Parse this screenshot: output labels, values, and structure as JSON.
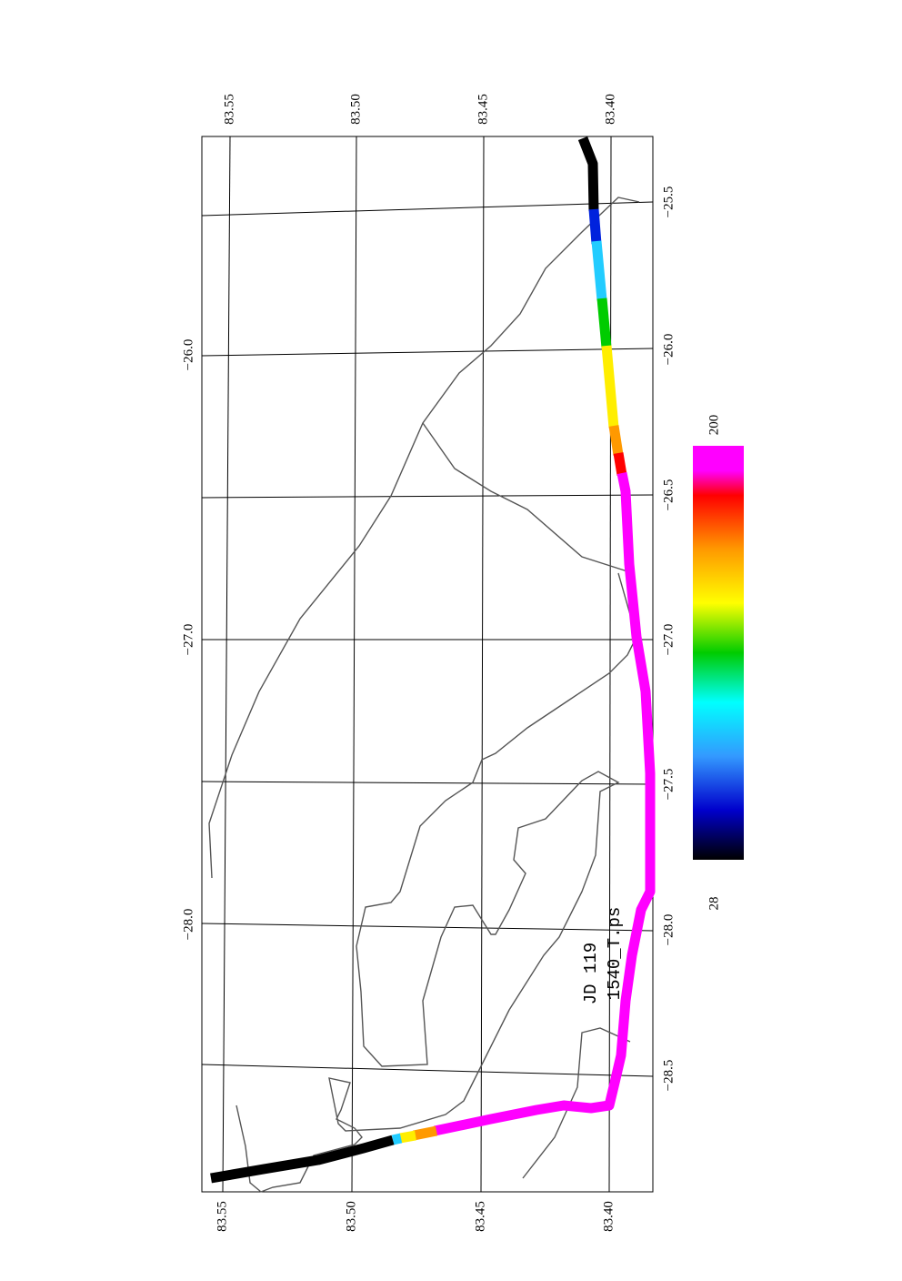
{
  "map": {
    "lat_labels_top": [
      "83.55",
      "83.50",
      "83.45",
      "83.40"
    ],
    "lat_labels_bottom": [
      "83.55",
      "83.50",
      "83.45",
      "83.40"
    ],
    "lon_labels_left": [
      "−26.0",
      "−27.0",
      "−28.0"
    ],
    "lon_labels_right": [
      "−25.5",
      "−26.0",
      "−26.5",
      "−27.0",
      "−27.5",
      "−28.0",
      "−28.5"
    ],
    "annotation": [
      "JD 119",
      "1540_T.ps"
    ],
    "colorbar": {
      "max_label": "200",
      "min_label": "28"
    }
  }
}
